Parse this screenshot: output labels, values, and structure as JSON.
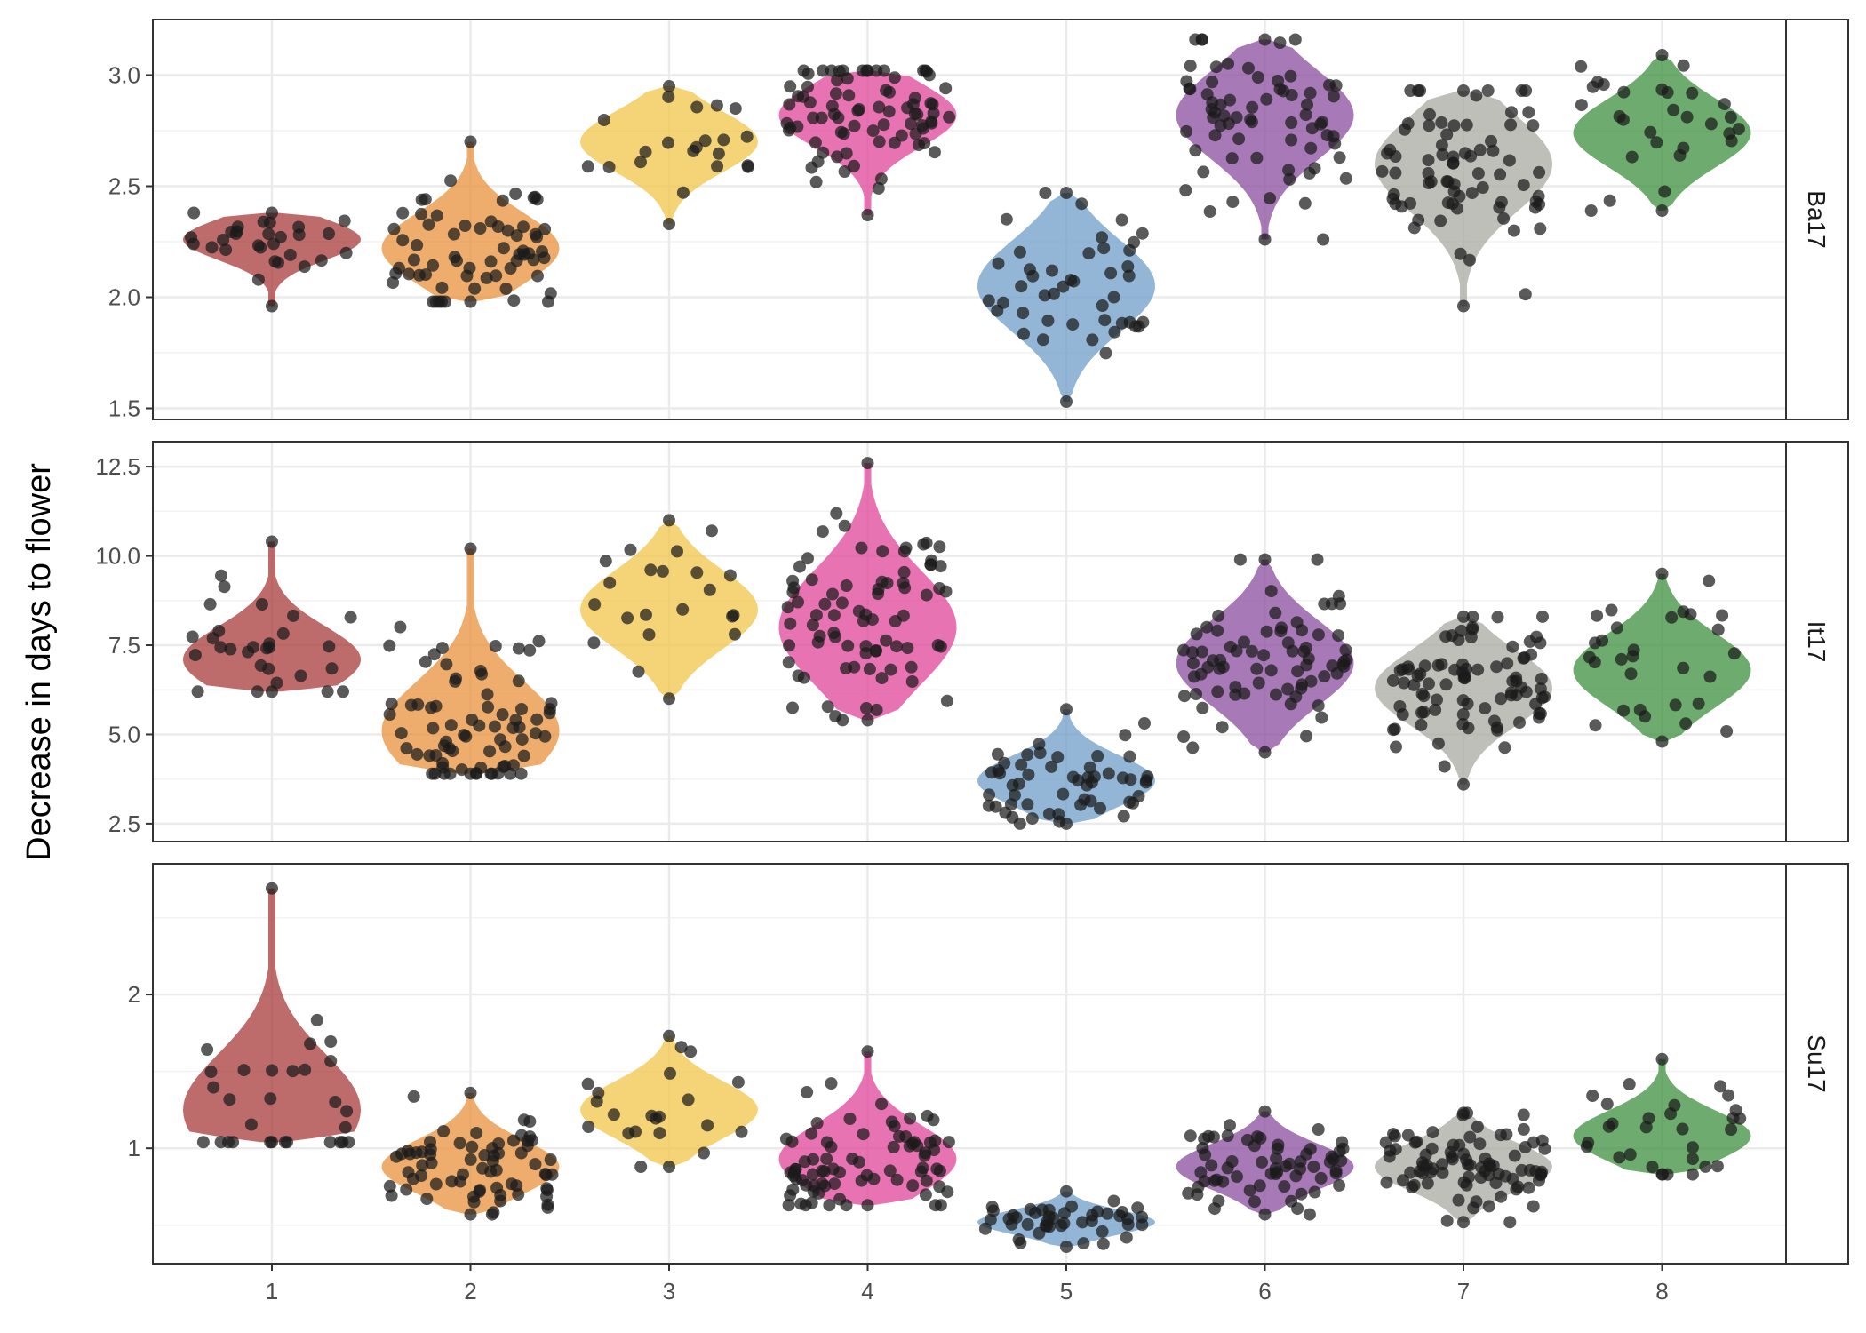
{
  "chart_data": {
    "type": "violin",
    "ylabel": "Decrease in days to flower",
    "xlabel": "",
    "categories": [
      "1",
      "2",
      "3",
      "4",
      "5",
      "6",
      "7",
      "8"
    ],
    "colors": [
      "#a83a3a",
      "#e8913c",
      "#f2c44a",
      "#e0449a",
      "#6f9ec9",
      "#8a4c9e",
      "#a9a9a2",
      "#3e8f3e"
    ],
    "grid": true,
    "points": "jittered, dark semi-transparent",
    "facets": [
      {
        "label": "Ba17",
        "ylim": [
          1.45,
          3.25
        ],
        "yticks": [
          1.5,
          2.0,
          2.5,
          3.0
        ],
        "ytick_labels": [
          "1.5",
          "2.0",
          "2.5",
          "3.0"
        ],
        "groups": [
          {
            "category": "1",
            "min": 1.96,
            "max": 2.38,
            "center": 2.26,
            "points": 30
          },
          {
            "category": "2",
            "min": 1.98,
            "max": 2.7,
            "center": 2.22,
            "points": 65
          },
          {
            "category": "3",
            "min": 2.33,
            "max": 2.95,
            "center": 2.7,
            "points": 22
          },
          {
            "category": "4",
            "min": 2.37,
            "max": 3.02,
            "center": 2.82,
            "points": 80
          },
          {
            "category": "5",
            "min": 1.53,
            "max": 2.47,
            "center": 2.05,
            "points": 45
          },
          {
            "category": "6",
            "min": 2.26,
            "max": 3.16,
            "center": 2.82,
            "points": 70
          },
          {
            "category": "7",
            "min": 1.96,
            "max": 2.93,
            "center": 2.6,
            "points": 75
          },
          {
            "category": "8",
            "min": 2.39,
            "max": 3.09,
            "center": 2.74,
            "points": 30
          }
        ]
      },
      {
        "label": "It17",
        "ylim": [
          2.0,
          13.2
        ],
        "yticks": [
          2.5,
          5.0,
          7.5,
          10.0,
          12.5
        ],
        "ytick_labels": [
          "2.5",
          "5.0",
          "7.5",
          "10.0",
          "12.5"
        ],
        "groups": [
          {
            "category": "1",
            "min": 6.2,
            "max": 10.4,
            "center": 7.1,
            "points": 30
          },
          {
            "category": "2",
            "min": 3.9,
            "max": 10.2,
            "center": 5.1,
            "points": 75
          },
          {
            "category": "3",
            "min": 6.0,
            "max": 11.0,
            "center": 8.5,
            "points": 22
          },
          {
            "category": "4",
            "min": 5.4,
            "max": 12.6,
            "center": 8.0,
            "points": 80
          },
          {
            "category": "5",
            "min": 2.5,
            "max": 5.7,
            "center": 3.7,
            "points": 55
          },
          {
            "category": "6",
            "min": 4.5,
            "max": 9.9,
            "center": 7.0,
            "points": 75
          },
          {
            "category": "7",
            "min": 3.6,
            "max": 8.3,
            "center": 6.3,
            "points": 85
          },
          {
            "category": "8",
            "min": 4.8,
            "max": 9.5,
            "center": 6.8,
            "points": 30
          }
        ]
      },
      {
        "label": "Su17",
        "ylim": [
          0.25,
          2.85
        ],
        "yticks": [
          1,
          2
        ],
        "ytick_labels": [
          "1",
          "2"
        ],
        "groups": [
          {
            "category": "1",
            "min": 1.04,
            "max": 2.69,
            "center": 1.25,
            "points": 30
          },
          {
            "category": "2",
            "min": 0.57,
            "max": 1.36,
            "center": 0.88,
            "points": 70
          },
          {
            "category": "3",
            "min": 0.88,
            "max": 1.73,
            "center": 1.25,
            "points": 22
          },
          {
            "category": "4",
            "min": 0.63,
            "max": 1.63,
            "center": 0.93,
            "points": 80
          },
          {
            "category": "5",
            "min": 0.36,
            "max": 0.72,
            "center": 0.52,
            "points": 45
          },
          {
            "category": "6",
            "min": 0.57,
            "max": 1.24,
            "center": 0.88,
            "points": 65
          },
          {
            "category": "7",
            "min": 0.52,
            "max": 1.23,
            "center": 0.88,
            "points": 85
          },
          {
            "category": "8",
            "min": 0.83,
            "max": 1.58,
            "center": 1.08,
            "points": 30
          }
        ]
      }
    ]
  }
}
